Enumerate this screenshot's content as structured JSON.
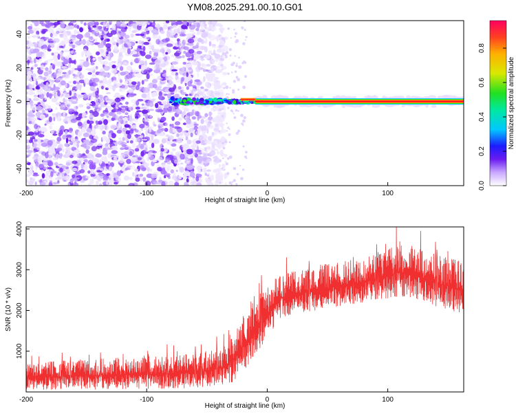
{
  "title": "YM08.2025.291.00.10.G01",
  "chart_data": [
    {
      "type": "heatmap",
      "title": "YM08.2025.291.00.10.G01",
      "xlabel": "Height of straight line (km)",
      "ylabel": "Frequency (Hz)",
      "xlim": [
        -200,
        163
      ],
      "ylim": [
        -50,
        48
      ],
      "x_ticks": [
        -200,
        -100,
        0,
        100
      ],
      "x_tick_labels": [
        "-200",
        "-100",
        "0",
        "100"
      ],
      "y_ticks": [
        -40,
        -20,
        0,
        20,
        40
      ],
      "y_tick_labels": [
        "-40",
        "-20",
        "0",
        "20",
        "40"
      ],
      "colorbar": {
        "label": "Normalized spectral amplitude",
        "range": [
          0,
          0.96
        ],
        "ticks": [
          0,
          0.2,
          0.4,
          0.6,
          0.8
        ],
        "tick_labels": [
          "0.0",
          "0.2",
          "0.4",
          "0.6",
          "0.8"
        ]
      },
      "description_regions": [
        {
          "x_range": [
            -200,
            -40
          ],
          "frequency_range": [
            -50,
            48
          ],
          "amplitude_range": [
            0.0,
            0.15
          ]
        },
        {
          "x_range": [
            -80,
            -10
          ],
          "frequency_range": [
            -4,
            4
          ],
          "amplitude_range": [
            0.1,
            0.5
          ]
        },
        {
          "x_range": [
            -10,
            163
          ],
          "frequency_center": 0,
          "amplitude_range": [
            0.85,
            0.96
          ]
        }
      ]
    },
    {
      "type": "line",
      "xlabel": "Height of straight line (km)",
      "ylabel": "SNR (10 * v/v)",
      "xlim": [
        -200,
        163
      ],
      "ylim": [
        0,
        4050
      ],
      "x_ticks": [
        -200,
        -100,
        0,
        100
      ],
      "x_tick_labels": [
        "-200",
        "-100",
        "0",
        "100"
      ],
      "y_ticks": [
        1000,
        2000,
        3000,
        4000
      ],
      "y_tick_labels": [
        "1000",
        "2000",
        "3000",
        "4000"
      ],
      "series": [
        {
          "name": "SNR",
          "color": "#f03030",
          "x": [
            -200,
            -180,
            -160,
            -140,
            -120,
            -100,
            -80,
            -60,
            -40,
            -30,
            -20,
            -10,
            0,
            10,
            20,
            40,
            60,
            80,
            100,
            110,
            120,
            140,
            163
          ],
          "low": [
            50,
            50,
            60,
            60,
            70,
            70,
            80,
            100,
            150,
            200,
            500,
            900,
            1300,
            1800,
            1900,
            2000,
            2100,
            2200,
            2300,
            2350,
            2300,
            2100,
            1900
          ],
          "high": [
            700,
            750,
            800,
            820,
            850,
            850,
            900,
            950,
            1100,
            1300,
            1900,
            2300,
            2600,
            2900,
            3000,
            3100,
            3200,
            3300,
            3500,
            3700,
            3600,
            3400,
            3200
          ]
        }
      ]
    }
  ]
}
